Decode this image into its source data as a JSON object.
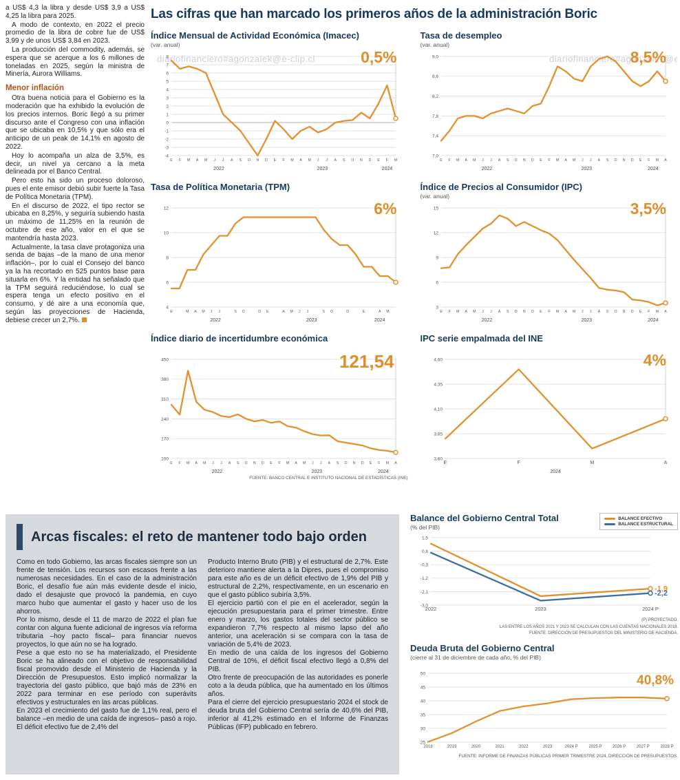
{
  "watermark": "diariofinanciero#agonzalek@e-clip.cl",
  "colors": {
    "accent_orange": "#DD8F2E",
    "line_orange": "#E2912F",
    "line_blue": "#3C6E9F",
    "navy": "#2C4A66"
  },
  "left_column": {
    "paragraphs_top": [
      "a US$ 4,3 la libra y desde US$ 3,9 a US$ 4,25 la libra para 2025.",
      "A modo de contexto, en 2022 el precio promedio de la libra de cobre fue de US$ 3,99 y de unos US$ 3,84 en 2023.",
      "La producción del commodity, además, se espera que se acerque a los 6 millones de toneladas en 2025, según la ministra de Minería, Aurora Williams."
    ],
    "subhead": "Menor inflación",
    "paragraphs_bottom": [
      "Otra buena noticia para el Gobierno es la moderación que ha exhibido la evolución de los precios internos. Boric llegó a su primer discurso ante el Congreso con una inflación que se ubicaba en 10,5% y que sólo era el anticipo de un peak de 14,1% en agosto de 2022.",
      "Hoy lo acompaña un alza de 3,5%, es decir, un nivel ya cercano a la meta delineada por el Banco Central.",
      "Pero esto ha sido un proceso doloroso, pues el ente emisor debió subir fuerte la Tasa de Política Monetaria (TPM).",
      "En el discurso de 2022, el tipo rector se ubicaba en 8,25%, y seguiría subiendo hasta un máximo de 11,25% en la reunión de octubre de ese año, valor en el que se mantendría hasta 2023.",
      "Actualmente, la tasa clave protagoniza una senda de bajas –de la mano de una menor inflación–, por lo cual el Consejo del banco ya la ha recortado en 525 puntos base para situarla en 6%. Y la entidad ha señalado que la TPM seguirá reduciéndose, lo cual se espera tenga un efecto positivo en el consumo, y dé aire a una economía que, según las proyecciones de Hacienda, debiese crecer un 2,7%."
    ]
  },
  "main": {
    "title": "Las cifras que han marcado los primeros años de la administración Boric"
  },
  "fiscal_box": {
    "headline": "Arcas fiscales: el reto de mantener todo bajo orden",
    "col1": [
      "Como en todo Gobierno, las arcas fiscales siempre son un frente de tensión. Los recursos son escasos frente a las numerosas necesidades. En el caso de la administración Boric, el desafío fue aún más evidente desde el inicio, dado el desajuste que provocó la pandemia, en cuyo marco hubo que aumentar el gasto y hacer uso de los ahorros.",
      "Por lo mismo, desde el 11 de marzo de 2022 el plan fue contar con alguna fuente adicional de ingresos vía reforma tributaria –hoy pacto fiscal– para financiar nuevos proyectos, lo que aún no se ha logrado.",
      "Pese a que esto no se ha materializado, el Presidente Boric se ha alineado con el objetivo de responsabilidad fiscal promovido desde el Ministerio de Hacienda y la Dirección de Presupuestos. Esto implicó normalizar la trayectoria del gasto público, que bajó más de 23% en 2022 para terminar en ese período con superávits efectivos y estructurales en las arcas públicas.",
      "En 2023 el crecimiento del gasto fue de 1,1% real, pero el balance –en medio de una caída de ingresos– pasó a rojo. El déficit efectivo fue de 2,4% del"
    ],
    "col2": [
      "Producto Interno Bruto (PIB) y el estructural de 2,7%. Este deterioro mantiene alerta a la Dipres, pues el compromiso para este año es de un déficit efectivo de 1,9% del PIB y estructural de 2,2%, respectivamente, en un escenario en que el gasto público subiría 3,5%.",
      "El ejercicio partió con el pie en el acelerador, según la ejecución presupuestaria para el primer trimestre. Entre enero y marzo, los gastos totales del sector público se expandieron 7,7% respecto al mismo lapso del año anterior, una aceleración si se compara con la tasa de variación de 5,4% de 2023.",
      "En medio de una caída de los ingresos del Gobierno Central de 10%, el déficit fiscal efectivo llegó a 0,8% del PIB.",
      "Otro frente de preocupación de las autoridades es ponerle coto a la deuda pública, que ha aumentado en los últimos años.",
      "Para el cierre del ejercicio presupuestario 2024 el stock de deuda bruta del Gobierno Central sería de 40,6% del PIB, inferior al 41,2% estimado en el Informe de Finanzas Públicas (IFP) publicado en febrero."
    ]
  },
  "chart_data": [
    {
      "id": "imacec",
      "type": "line",
      "title": "Índice Mensual de Actividad Económica (Imacec)",
      "subtitle": "(var. anual)",
      "annotation": "0,5%",
      "ylim": [
        -4,
        8
      ],
      "y_ticks": [
        8,
        7,
        6,
        5,
        4,
        3,
        2,
        1,
        0,
        -1,
        -2,
        -3,
        -4
      ],
      "y_tick_labels": [
        "8",
        "7",
        "6",
        "5",
        "4",
        "3",
        "2",
        "1",
        "0",
        "-1",
        "-2",
        "-3",
        "-4"
      ],
      "x_labels": [
        "E",
        "F",
        "M",
        "A",
        "M",
        "J",
        "J",
        "A",
        "S",
        "O",
        "N",
        "D",
        "E",
        "F",
        "M",
        "A",
        "M",
        "J",
        "J",
        "A",
        "S",
        "O",
        "N",
        "D",
        "E",
        "F",
        "M"
      ],
      "years": [
        {
          "label": "2022",
          "from": 0,
          "to": 11
        },
        {
          "label": "2023",
          "from": 12,
          "to": 23
        },
        {
          "label": "2024",
          "from": 24,
          "to": 26
        }
      ],
      "values": [
        7.5,
        6.5,
        6.8,
        6.5,
        6.0,
        3.5,
        1.0,
        0.0,
        -1.0,
        -2.5,
        -4.0,
        -2.0,
        0.2,
        -0.8,
        -2.0,
        -1.0,
        -0.5,
        -1.2,
        -0.8,
        0.0,
        0.2,
        0.3,
        1.2,
        0.5,
        2.3,
        4.5,
        0.5
      ]
    },
    {
      "id": "desempleo",
      "type": "line",
      "title": "Tasa de desempleo",
      "subtitle": "(var. anual)",
      "annotation": "8,5%",
      "ylim": [
        7.0,
        9.0
      ],
      "y_ticks": [
        9.0,
        8.6,
        8.2,
        7.8,
        7.4,
        7.0
      ],
      "y_tick_labels": [
        "9,0",
        "8,6",
        "8,2",
        "7,8",
        "7,4",
        "7,0"
      ],
      "x_labels": [
        "E",
        "F",
        "M",
        "A",
        "M",
        "J",
        "J",
        "A",
        "S",
        "O",
        "N",
        "D",
        "E",
        "F",
        "M",
        "A",
        "M",
        "J",
        "J",
        "A",
        "S",
        "O",
        "N",
        "D",
        "E",
        "F",
        "M",
        "A"
      ],
      "years": [
        {
          "label": "2022",
          "from": 0,
          "to": 11
        },
        {
          "label": "2023",
          "from": 12,
          "to": 23
        },
        {
          "label": "2024",
          "from": 24,
          "to": 27
        }
      ],
      "values": [
        7.3,
        7.5,
        7.75,
        7.8,
        7.8,
        7.75,
        7.85,
        7.9,
        7.95,
        7.9,
        7.85,
        8.0,
        8.05,
        8.4,
        8.8,
        8.7,
        8.55,
        8.5,
        8.8,
        8.95,
        9.0,
        8.9,
        8.7,
        8.5,
        8.4,
        8.5,
        8.7,
        8.5
      ]
    },
    {
      "id": "tpm",
      "type": "line",
      "title": "Tasa de Política Monetaria (TPM)",
      "subtitle": "",
      "annotation": "6%",
      "ylim": [
        4,
        12
      ],
      "y_ticks": [
        12,
        10,
        8,
        6,
        4
      ],
      "y_tick_labels": [
        "12",
        "10",
        "8",
        "6",
        "4"
      ],
      "x_labels": [
        "E",
        "",
        "M",
        "A",
        "M",
        "J",
        "J",
        "",
        "S",
        "O",
        "",
        "D",
        "E",
        "",
        "A",
        "M",
        "J",
        "J",
        "",
        "S",
        "O",
        "",
        "D",
        "",
        "E",
        "",
        "A",
        "M",
        ""
      ],
      "years": [
        {
          "label": "2022",
          "from": 0,
          "to": 11
        },
        {
          "label": "2023",
          "from": 12,
          "to": 23
        },
        {
          "label": "2024",
          "from": 24,
          "to": 28
        }
      ],
      "values": [
        5.5,
        5.5,
        7.0,
        7.0,
        8.25,
        9.0,
        9.75,
        9.75,
        10.75,
        11.25,
        11.25,
        11.25,
        11.25,
        11.25,
        11.25,
        11.25,
        11.25,
        11.25,
        11.25,
        10.25,
        9.5,
        9.0,
        9.0,
        8.25,
        7.25,
        7.25,
        6.5,
        6.5,
        6.0
      ]
    },
    {
      "id": "ipc",
      "type": "line",
      "title": "Índice de Precios al Consumidor (IPC)",
      "subtitle": "(var. anual)",
      "annotation": "3,5%",
      "ylim": [
        3,
        15
      ],
      "y_ticks": [
        15,
        12,
        9,
        6,
        3
      ],
      "y_tick_labels": [
        "15",
        "12",
        "9",
        "6",
        "3"
      ],
      "x_labels": [
        "E",
        "F",
        "M",
        "A",
        "M",
        "J",
        "J",
        "A",
        "S",
        "O",
        "N",
        "D",
        "E",
        "F",
        "M",
        "A",
        "M",
        "J",
        "J",
        "A",
        "S",
        "O",
        "N",
        "D",
        "E",
        "F",
        "M",
        "A"
      ],
      "years": [
        {
          "label": "2022",
          "from": 0,
          "to": 11
        },
        {
          "label": "2023",
          "from": 12,
          "to": 23
        },
        {
          "label": "2024",
          "from": 24,
          "to": 27
        }
      ],
      "values": [
        7.7,
        7.8,
        9.4,
        10.5,
        11.5,
        12.5,
        13.1,
        14.1,
        13.7,
        12.8,
        13.3,
        12.8,
        12.3,
        11.9,
        11.1,
        9.9,
        8.7,
        7.6,
        6.5,
        5.3,
        5.1,
        5.0,
        4.8,
        3.9,
        3.8,
        3.6,
        3.2,
        3.5
      ]
    },
    {
      "id": "incertidumbre",
      "type": "line",
      "title": "Índice diario de incertidumbre económica",
      "subtitle": "",
      "annotation": "121,54",
      "source": "FUENTE: BANCO CENTRAL E INSTITUTO NACIONAL DE ESTADÍSTICAS (INE)",
      "ylim": [
        100,
        450
      ],
      "y_ticks": [
        450,
        380,
        310,
        240,
        170,
        100
      ],
      "y_tick_labels": [
        "450",
        "380",
        "310",
        "240",
        "170",
        "100"
      ],
      "x_labels": [
        "E",
        "F",
        "M",
        "A",
        "M",
        "J",
        "J",
        "A",
        "S",
        "O",
        "N",
        "D",
        "E",
        "F",
        "M",
        "A",
        "M",
        "J",
        "J",
        "A",
        "S",
        "O",
        "N",
        "D",
        "E",
        "F",
        "M",
        "A"
      ],
      "years": [
        {
          "label": "2022",
          "from": 0,
          "to": 11
        },
        {
          "label": "2023",
          "from": 12,
          "to": 23
        },
        {
          "label": "2024",
          "from": 24,
          "to": 27
        }
      ],
      "values": [
        290,
        255,
        410,
        300,
        272,
        264,
        250,
        246,
        256,
        240,
        231,
        236,
        226,
        231,
        214,
        209,
        196,
        186,
        181,
        182,
        161,
        156,
        151,
        146,
        136,
        130,
        127,
        121.54
      ]
    },
    {
      "id": "ipc_ine",
      "type": "line",
      "title": "IPC serie empalmada del INE",
      "subtitle": "",
      "annotation": "4%",
      "ylim": [
        3.6,
        4.6
      ],
      "y_ticks": [
        4.6,
        4.35,
        4.1,
        3.85,
        3.6
      ],
      "y_tick_labels": [
        "4,60",
        "4,35",
        "4,10",
        "3,85",
        "3,60"
      ],
      "x_labels": [
        "E",
        "F",
        "M",
        "A"
      ],
      "xtick_font": 7,
      "margins": {
        "l": 36
      },
      "years": [
        {
          "label": "2024",
          "from": 0,
          "to": 3
        }
      ],
      "values": [
        3.8,
        4.5,
        3.7,
        4.0
      ]
    },
    {
      "id": "balance",
      "type": "line",
      "title": "Balance del Gobierno Central Total",
      "subtitle": "(% del PIB)",
      "legend": [
        "BALANCE EFECTIVO",
        "BALANCE ESTRUCTURAL"
      ],
      "notes": [
        "(P) PROYECTADO.",
        "LAS ENTRE LOS AÑOS 2021 Y 2023 SE CALCULAN CON LAS CUENTAS NACIONALES 2018.",
        "FUENTE: DIRECCIÓN DE PRESUPUESTOS DEL MINISTERIO DE HACIENDA."
      ],
      "ylim": [
        -3.0,
        1.5
      ],
      "y_ticks": [
        1.5,
        0.6,
        -0.3,
        -1.2,
        -2.1,
        -3.0
      ],
      "y_tick_labels": [
        "1,5",
        "0,6",
        "-0,3",
        "-1,2",
        "-2,1",
        "-3,0"
      ],
      "x_labels": [
        "2022",
        "2023",
        "2024 P"
      ],
      "xtick_font": 7.5,
      "margins": {
        "l": 30,
        "r": 40,
        "t": 8,
        "b": 16
      },
      "guide": false,
      "series": [
        {
          "name": "BALANCE EFECTIVO",
          "color": "line_orange",
          "values": [
            1.1,
            -2.4,
            -1.9
          ],
          "end_label": "-1,9"
        },
        {
          "name": "BALANCE ESTRUCTURAL",
          "color": "line_blue",
          "values": [
            0.5,
            -2.7,
            -2.2
          ],
          "end_label": "-2,2"
        }
      ]
    },
    {
      "id": "deuda",
      "type": "line",
      "title": "Deuda Bruta del Gobierno Central",
      "subtitle": "(cierre al 31 de diciembre de cada año, % del PIB)",
      "annotation": "40,8%",
      "source": "FUENTE: INFORME DE FINANZAS PÚBLICAS PRIMER TRIMESTRE 2024, DIRECCIÓN DE PRESUPUESTOS.",
      "ylim": [
        25,
        50
      ],
      "y_ticks": [
        50,
        45,
        40,
        35,
        30,
        25
      ],
      "y_tick_labels": [
        "50",
        "45",
        "40",
        "35",
        "30",
        "25"
      ],
      "x_labels": [
        "2018",
        "2019",
        "2020",
        "2021",
        "2022",
        "2023",
        "2024 P",
        "2025 P",
        "2026 P",
        "2027 P",
        "2028 P"
      ],
      "xtick_font": 6,
      "margins": {
        "l": 26,
        "r": 16,
        "t": 16,
        "b": 16
      },
      "guide": false,
      "values": [
        25.1,
        28.3,
        32.5,
        36.3,
        38.0,
        39.1,
        40.6,
        41.0,
        41.2,
        41.2,
        40.8
      ]
    }
  ]
}
